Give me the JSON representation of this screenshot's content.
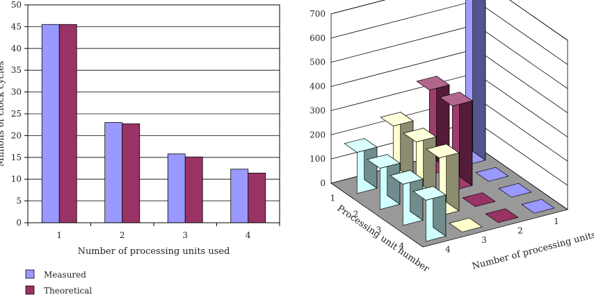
{
  "chart_data": [
    {
      "type": "bar",
      "ylabel": "Millions of clock cycles",
      "xlabel": "Number of processing units used",
      "categories": [
        "1",
        "2",
        "3",
        "4"
      ],
      "ylim": [
        0,
        50
      ],
      "yticks": [
        0,
        5,
        10,
        15,
        20,
        25,
        30,
        35,
        40,
        45,
        50
      ],
      "grid": true,
      "legend_position": "bottom-left",
      "series": [
        {
          "name": "Measured",
          "values": [
            45.5,
            23.0,
            15.8,
            12.3
          ],
          "color": "#9999ff"
        },
        {
          "name": "Theoretical",
          "values": [
            45.5,
            22.7,
            15.1,
            11.4
          ],
          "color": "#993366"
        }
      ]
    },
    {
      "type": "bar3d",
      "xlabel": "Processing unit number",
      "ylabel": "Number of processing units used",
      "x_categories": [
        "1",
        "2",
        "3",
        "4"
      ],
      "y_categories": [
        "1",
        "2",
        "3",
        "4"
      ],
      "zlim": [
        0,
        700
      ],
      "zticks": [
        0,
        100,
        200,
        300,
        400,
        500,
        600,
        700
      ],
      "grid": true,
      "series": [
        {
          "processing_units_used": 1,
          "color": "#9999ff",
          "values": [
            700,
            0,
            0,
            0
          ]
        },
        {
          "processing_units_used": 2,
          "color": "#993366",
          "values": [
            350,
            350,
            0,
            0
          ]
        },
        {
          "processing_units_used": 3,
          "color": "#ffffcc",
          "values": [
            240,
            240,
            240,
            0
          ]
        },
        {
          "processing_units_used": 4,
          "color": "#ccffff",
          "values": [
            170,
            170,
            170,
            170
          ]
        }
      ]
    }
  ],
  "legend": [
    {
      "label": "Measured",
      "color": "#9999ff"
    },
    {
      "label": "Theoretical",
      "color": "#993366"
    }
  ]
}
